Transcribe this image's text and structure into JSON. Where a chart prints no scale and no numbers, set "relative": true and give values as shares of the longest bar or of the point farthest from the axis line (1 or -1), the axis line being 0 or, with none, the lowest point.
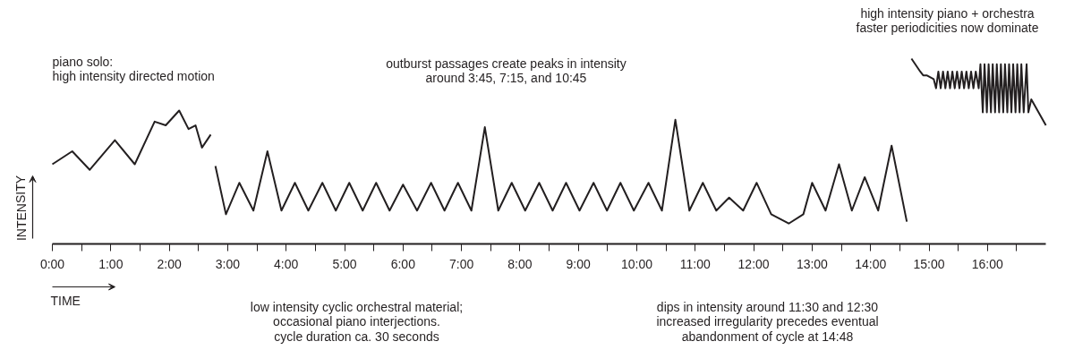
{
  "chart_data": {
    "type": "line",
    "relative": true,
    "xlabel": "TIME",
    "ylabel": "INTENSITY",
    "xlim": [
      0,
      17
    ],
    "xticks": [
      {
        "value": 0,
        "label": "0:00"
      },
      {
        "value": 0.5,
        "label": null
      },
      {
        "value": 1,
        "label": "1:00"
      },
      {
        "value": 1.5,
        "label": null
      },
      {
        "value": 2,
        "label": "2:00"
      },
      {
        "value": 2.5,
        "label": null
      },
      {
        "value": 3,
        "label": "3:00"
      },
      {
        "value": 3.5,
        "label": null
      },
      {
        "value": 4,
        "label": "4:00"
      },
      {
        "value": 4.5,
        "label": null
      },
      {
        "value": 5,
        "label": "5:00"
      },
      {
        "value": 5.5,
        "label": null
      },
      {
        "value": 6,
        "label": "6:00"
      },
      {
        "value": 6.5,
        "label": null
      },
      {
        "value": 7,
        "label": "7:00"
      },
      {
        "value": 7.5,
        "label": null
      },
      {
        "value": 8,
        "label": "8:00"
      },
      {
        "value": 8.5,
        "label": null
      },
      {
        "value": 9,
        "label": "9:00"
      },
      {
        "value": 9.5,
        "label": null
      },
      {
        "value": 10,
        "label": "10:00"
      },
      {
        "value": 10.5,
        "label": null
      },
      {
        "value": 11,
        "label": "11:00"
      },
      {
        "value": 11.5,
        "label": null
      },
      {
        "value": 12,
        "label": "12:00"
      },
      {
        "value": 12.5,
        "label": null
      },
      {
        "value": 13,
        "label": "13:00"
      },
      {
        "value": 13.5,
        "label": null
      },
      {
        "value": 14,
        "label": "14:00"
      },
      {
        "value": 14.5,
        "label": null
      },
      {
        "value": 15,
        "label": "15:00"
      },
      {
        "value": 15.5,
        "label": null
      },
      {
        "value": 16,
        "label": "16:00"
      },
      {
        "value": 16.5,
        "label": null
      }
    ],
    "line_style": "solid",
    "marker": "none",
    "series": [
      {
        "color": "#231f20",
        "x": [
          0,
          0.34,
          0.64,
          1.07,
          1.41,
          1.75,
          1.94,
          2.17,
          2.33,
          2.45,
          2.56,
          2.71
        ],
        "values": [
          0.43,
          0.5,
          0.4,
          0.56,
          0.43,
          0.66,
          0.64,
          0.72,
          0.62,
          0.64,
          0.52,
          0.59
        ]
      },
      {
        "color": "#231f20",
        "x": [
          2.79,
          2.97,
          3.2,
          3.44,
          3.68,
          3.92,
          4.15,
          4.38,
          4.62,
          4.85,
          5.08,
          5.31,
          5.54,
          5.77,
          6.0,
          6.24,
          6.48,
          6.71,
          6.94,
          7.17,
          7.4,
          7.63,
          7.86,
          8.09,
          8.33,
          8.56,
          8.79,
          9.02,
          9.26,
          9.49,
          9.72,
          9.95,
          10.2,
          10.43,
          10.66,
          10.9,
          11.13,
          11.36,
          11.58,
          11.82,
          12.05,
          12.3,
          12.6,
          12.85,
          13.0,
          13.23,
          13.46,
          13.68,
          13.9,
          14.13,
          14.36,
          14.62
        ],
        "values": [
          0.42,
          0.16,
          0.33,
          0.18,
          0.5,
          0.18,
          0.33,
          0.18,
          0.33,
          0.18,
          0.33,
          0.18,
          0.33,
          0.18,
          0.32,
          0.18,
          0.33,
          0.18,
          0.33,
          0.18,
          0.63,
          0.18,
          0.33,
          0.18,
          0.33,
          0.18,
          0.33,
          0.18,
          0.33,
          0.18,
          0.33,
          0.18,
          0.33,
          0.18,
          0.67,
          0.18,
          0.33,
          0.18,
          0.25,
          0.18,
          0.33,
          0.16,
          0.11,
          0.16,
          0.33,
          0.18,
          0.43,
          0.18,
          0.36,
          0.18,
          0.53,
          0.12
        ]
      },
      {
        "color": "#231f20",
        "x": [
          14.7,
          14.85,
          14.9,
          14.96,
          15.08,
          15.12,
          15.16,
          15.2,
          15.24,
          15.28,
          15.32,
          15.36,
          15.4,
          15.44,
          15.48,
          15.52,
          15.56,
          15.6,
          15.64,
          15.68,
          15.72,
          15.76,
          15.8,
          15.85,
          15.88,
          15.92,
          15.95,
          15.99,
          16.02,
          16.06,
          16.09,
          16.13,
          16.16,
          16.2,
          16.23,
          16.27,
          16.3,
          16.34,
          16.37,
          16.41,
          16.44,
          16.48,
          16.51,
          16.55,
          16.58,
          16.62,
          16.67,
          16.7,
          16.75,
          17.0
        ],
        "values": [
          1.0,
          0.93,
          0.91,
          0.91,
          0.89,
          0.84,
          0.93,
          0.84,
          0.93,
          0.84,
          0.93,
          0.84,
          0.93,
          0.84,
          0.93,
          0.84,
          0.93,
          0.84,
          0.93,
          0.84,
          0.93,
          0.84,
          0.93,
          0.84,
          0.97,
          0.71,
          0.97,
          0.71,
          0.97,
          0.71,
          0.97,
          0.71,
          0.97,
          0.71,
          0.97,
          0.71,
          0.97,
          0.71,
          0.97,
          0.71,
          0.97,
          0.71,
          0.97,
          0.71,
          0.97,
          0.71,
          0.97,
          0.71,
          0.78,
          0.64
        ]
      }
    ],
    "annotations": [
      "piano solo:\nhigh intensity directed motion",
      "outburst passages create peaks in intensity\naround 3:45, 7:15, and 10:45",
      "high intensity piano + orchestra\nfaster periodicities now dominate",
      "low intensity cyclic orchestral material;\noccasional piano interjections.\ncycle duration ca. 30 seconds",
      "dips in intensity around 11:30 and 12:30\nincreased irregularity precedes eventual\nabandonment of cycle at 14:48"
    ]
  }
}
